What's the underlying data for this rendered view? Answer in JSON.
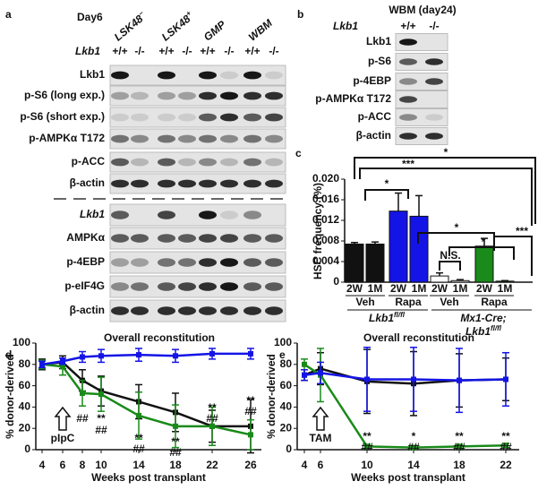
{
  "panel_a": {
    "label": "a",
    "day": "Day6",
    "columns": [
      {
        "name": "LSK48",
        "superscript": "−"
      },
      {
        "name": "LSK48",
        "superscript": "+"
      },
      {
        "name": "GMP"
      },
      {
        "name": "WBM"
      }
    ],
    "genotype_label": "Lkb1",
    "genotypes": [
      "+/+",
      "-/-",
      "+/+",
      "-/-",
      "+/+",
      "-/-",
      "+/+",
      "-/-"
    ],
    "rows_upper": [
      "Lkb1",
      "p-S6 (long exp.)",
      "p-S6 (short exp.)",
      "p-AMPKα T172",
      "p-ACC",
      "β-actin"
    ],
    "rows_lower": [
      "Lkb1",
      "AMPKα",
      "p-4EBP",
      "p-eIF4G",
      "β-actin"
    ]
  },
  "panel_b": {
    "label": "b",
    "title": "WBM (day24)",
    "genotype_label": "Lkb1",
    "genotypes": [
      "+/+",
      "-/-"
    ],
    "rows": [
      "Lkb1",
      "p-S6",
      "p-4EBP",
      "p-AMPKα T172",
      "p-ACC",
      "β-actin"
    ]
  },
  "chart_data": [
    {
      "type": "bar",
      "panel_label": "c",
      "ylabel": "HSC frequency (%)",
      "categories": [
        "2W",
        "1M",
        "2W",
        "1M",
        "2W",
        "1M",
        "2W",
        "1M"
      ],
      "groups": [
        "Veh",
        "Rapa",
        "Veh",
        "Rapa"
      ],
      "genotypes": [
        {
          "name": "Lkb1",
          "superscript": "fl/fl"
        },
        {
          "prefix": "Mx1-Cre;",
          "name": "Lkb1",
          "superscript": "fl/fl"
        }
      ],
      "values": [
        0.0074,
        0.0074,
        0.0138,
        0.0128,
        0.0012,
        0.0003,
        0.007,
        0.0002
      ],
      "errors": [
        0.0003,
        0.0004,
        0.0035,
        0.004,
        0.0006,
        0.0002,
        0.0015,
        0.0001
      ],
      "colors": [
        "#111111",
        "#111111",
        "#1414e6",
        "#1414e6",
        "#ffffff",
        "#ffffff",
        "#1a8a1a",
        "#1a8a1a"
      ],
      "ylim": [
        0,
        0.02
      ],
      "yticks": [
        0,
        0.004,
        0.008,
        0.012,
        0.016,
        {
          "value": 0.02,
          "label": "0.020"
        }
      ],
      "annotations": [
        "*",
        "***",
        "*",
        "*",
        "N.S.",
        "*",
        "***"
      ]
    },
    {
      "type": "line",
      "panel_label": "d",
      "title": "Overall reconstitution",
      "xlabel": "Weeks post transplant",
      "ylabel": "% donor-derived",
      "categories": [
        "4",
        "6",
        "8",
        "10",
        "14",
        "18",
        "22",
        "26"
      ],
      "series": [
        {
          "color": "#111111",
          "values": [
            80,
            82,
            65,
            55,
            45,
            35,
            22,
            22
          ],
          "errors": [
            5,
            6,
            10,
            14,
            16,
            18,
            15,
            25
          ]
        },
        {
          "color": "#1a8a1a",
          "values": [
            80,
            78,
            53,
            52,
            32,
            22,
            22,
            14
          ],
          "errors": [
            4,
            8,
            12,
            16,
            22,
            20,
            18,
            14
          ]
        },
        {
          "color": "#1414e6",
          "values": [
            80,
            83,
            87,
            88,
            89,
            88,
            90,
            90
          ],
          "errors": [
            3,
            3,
            5,
            6,
            6,
            6,
            5,
            5
          ]
        }
      ],
      "ylim": [
        0,
        100
      ],
      "yticks": [
        0,
        20,
        40,
        60,
        80,
        100
      ],
      "treatment_label": "pIpC",
      "annotations": [
        "##",
        "**",
        "##",
        "**",
        "##",
        "**",
        "##",
        "**",
        "##",
        "**",
        "##"
      ]
    },
    {
      "type": "line",
      "panel_label": "e",
      "title": "Overall reconstitution",
      "xlabel": "Weeks post transplant",
      "ylabel": "% donor-derived",
      "categories": [
        "4",
        "6",
        "10",
        "14",
        "18",
        "22"
      ],
      "series": [
        {
          "color": "#111111",
          "values": [
            70,
            76,
            64,
            62,
            65,
            66
          ],
          "errors": [
            5,
            15,
            30,
            30,
            25,
            20
          ]
        },
        {
          "color": "#1a8a1a",
          "values": [
            80,
            70,
            3,
            2,
            3,
            4
          ],
          "errors": [
            5,
            25,
            2,
            2,
            2,
            2
          ]
        },
        {
          "color": "#1414e6",
          "values": [
            70,
            72,
            66,
            66,
            65,
            66
          ],
          "errors": [
            5,
            10,
            30,
            30,
            30,
            25
          ]
        }
      ],
      "ylim": [
        0,
        100
      ],
      "yticks": [
        0,
        20,
        40,
        60,
        80,
        100
      ],
      "treatment_label": "TAM",
      "annotations": [
        "**",
        "##",
        "*",
        "##",
        "**",
        "##",
        "**",
        "##"
      ]
    }
  ]
}
